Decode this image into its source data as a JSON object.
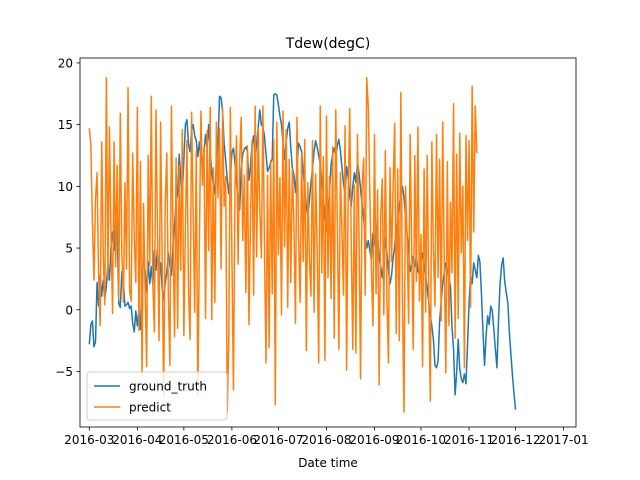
{
  "chart_data": {
    "type": "line",
    "title": "Tdew(degC)",
    "xlabel": "Date time",
    "ylabel": "",
    "xlim": [
      "2016-02-24",
      "2017-01-09"
    ],
    "ylim": [
      -9.5,
      20.4
    ],
    "x_tick_labels": [
      "2016-03",
      "2016-04",
      "2016-05",
      "2016-06",
      "2016-07",
      "2016-08",
      "2016-09",
      "2016-10",
      "2016-11",
      "2016-12",
      "2017-01"
    ],
    "y_tick_labels": [
      "−5",
      "0",
      "5",
      "10",
      "15",
      "20"
    ],
    "legend_position": "lower left",
    "colors": {
      "ground_truth": "#1f77b4",
      "predict": "#ff7f0e"
    },
    "x_start": "2016-03-01",
    "x_step_days": 1,
    "series": [
      {
        "name": "ground_truth",
        "values": [
          -2.8,
          -1.2,
          -0.9,
          -3.0,
          -2.6,
          2.2,
          0.3,
          2.8,
          1.1,
          2.4,
          0.9,
          1.9,
          3.7,
          2.4,
          5.1,
          6.3,
          4.8,
          8.4,
          6.2,
          0.5,
          0.2,
          3.1,
          2.2,
          0.3,
          0.4,
          0.6,
          0.1,
          0.3,
          -1.1,
          -1.8,
          -0.1,
          -1.3,
          0.0,
          -1.6,
          2.4,
          4.0,
          3.2,
          1.4,
          3.9,
          2.1,
          3.5,
          2.0,
          4.8,
          3.2,
          5.0,
          2.6,
          3.8,
          1.7,
          0.8,
          2.2,
          3.0,
          4.6,
          3.6,
          2.8,
          5.2,
          6.9,
          8.8,
          9.4,
          12.6,
          10.6,
          9.3,
          12.1,
          15.0,
          15.4,
          13.4,
          12.8,
          14.5,
          15.0,
          14.1,
          13.7,
          12.4,
          13.6,
          12.2,
          11.6,
          12.8,
          14.2,
          13.1,
          15.0,
          12.8,
          11.2,
          10.1,
          9.4,
          11.9,
          13.2,
          17.3,
          17.2,
          16.1,
          13.4,
          12.1,
          10.6,
          9.4,
          10.8,
          12.7,
          13.1,
          11.9,
          10.3,
          8.9,
          8.1,
          11.3,
          12.6,
          13.0,
          13.2,
          12.8,
          10.5,
          11.6,
          13.4,
          14.1,
          12.2,
          13.4,
          14.8,
          16.2,
          15.0,
          14.8,
          14.1,
          12.6,
          11.2,
          11.5,
          11.9,
          12.2,
          17.4,
          17.5,
          17.4,
          16.6,
          15.7,
          15.0,
          13.5,
          12.2,
          13.6,
          14.7,
          15.2,
          13.1,
          11.5,
          10.9,
          9.5,
          11.6,
          13.5,
          13.2,
          12.8,
          11.2,
          9.8,
          8.3,
          7.6,
          8.9,
          10.3,
          11.4,
          12.8,
          13.7,
          13.2,
          12.5,
          11.8,
          10.6,
          9.1,
          7.7,
          6.4,
          7.9,
          9.6,
          11.8,
          12.6,
          13.1,
          12.5,
          13.3,
          13.8,
          12.9,
          11.5,
          10.2,
          9.4,
          11.6,
          10.7,
          9.2,
          8.4,
          10.0,
          11.1,
          10.3,
          12.0,
          11.1,
          9.8,
          8.5,
          7.4,
          6.1,
          5.0,
          5.6,
          4.8,
          4.1,
          6.2,
          5.3,
          6.8,
          5.8,
          4.2,
          3.5,
          2.6,
          4.1,
          5.8,
          4.6,
          3.2,
          2.1,
          2.8,
          4.2,
          5.1,
          6.4,
          7.5,
          8.4,
          9.3,
          10.0,
          9.1,
          7.6,
          6.2,
          4.8,
          3.1,
          3.6,
          4.3,
          3.5,
          4.4,
          3.1,
          2.9,
          3.8,
          4.6,
          3.4,
          2.7,
          1.8,
          0.6,
          -0.5,
          -1.3,
          -2.4,
          -4.5,
          -4.7,
          -4.2,
          -1.0,
          0.6,
          2.1,
          3.0,
          3.8,
          3.1,
          2.6,
          1.9,
          -1.4,
          -3.2,
          -6.9,
          -5.1,
          -2.4,
          -4.8,
          -5.6,
          -5.9,
          -5.2,
          -6.0,
          -2.9,
          0.5,
          2.8,
          2.1,
          3.8,
          3.2,
          2.6,
          4.4,
          3.9,
          1.3,
          -1.8,
          -4.5,
          -2.1,
          -0.5,
          -1.2,
          0.3,
          -0.1,
          -1.6,
          -3.2,
          -4.7,
          -0.9,
          2.1,
          3.6,
          4.2,
          2.3,
          1.4,
          0.6,
          -1.8,
          -3.6,
          -5.3,
          -6.8,
          -8.1
        ]
      },
      {
        "name": "predict",
        "values": [
          14.7,
          13.4,
          7.2,
          2.4,
          9.0,
          11.1,
          2.7,
          -1.3,
          13.6,
          4.4,
          0.4,
          18.8,
          2.5,
          14.8,
          6.1,
          -0.3,
          13.6,
          3.5,
          11.7,
          0.8,
          15.9,
          4.6,
          0.6,
          10.3,
          3.3,
          18.0,
          1.6,
          0.7,
          12.7,
          5.7,
          2.2,
          16.4,
          -1.7,
          12.0,
          -5.4,
          8.6,
          1.6,
          -4.6,
          12.5,
          3.6,
          17.3,
          2.1,
          -1.8,
          16.2,
          6.3,
          -2.5,
          15.2,
          4.2,
          -7.0,
          8.7,
          12.7,
          1.1,
          -4.5,
          16.5,
          5.9,
          -2.2,
          12.3,
          -1.5,
          11.7,
          3.2,
          14.6,
          -2.1,
          6.8,
          13.7,
          1.5,
          -2.4,
          16.0,
          8.0,
          -0.2,
          12.9,
          -6.9,
          5.2,
          16.1,
          10.1,
          13.2,
          -0.7,
          14.5,
          4.8,
          16.4,
          -0.8,
          11.5,
          0.6,
          15.2,
          9.1,
          14.7,
          3.3,
          16.3,
          8.4,
          10.8,
          -8.3,
          -2.4,
          16.4,
          4.4,
          -6.5,
          10.2,
          14.1,
          3.7,
          12.2,
          15.6,
          5.6,
          10.9,
          1.4,
          13.3,
          -1.2,
          7.2,
          13.7,
          1.2,
          16.5,
          4.3,
          14.7,
          8.0,
          4.2,
          16.5,
          5.1,
          -4.3,
          10.9,
          -3.1,
          12.1,
          1.3,
          13.8,
          -7.7,
          15.2,
          4.5,
          10.7,
          -0.4,
          16.1,
          5.1,
          14.6,
          0.2,
          12.2,
          2.2,
          11.4,
          7.1,
          -1.1,
          15.6,
          5.9,
          0.6,
          12.6,
          3.9,
          13.8,
          -3.3,
          10.3,
          4.1,
          1.1,
          13.7,
          -0.2,
          11.0,
          4.8,
          -4.3,
          16.5,
          3.0,
          12.4,
          -4.1,
          15.7,
          2.6,
          10.8,
          0.9,
          13.2,
          -2.3,
          16.2,
          7.2,
          -3.2,
          11.1,
          6.4,
          1.2,
          14.9,
          -4.9,
          9.0,
          16.3,
          5.2,
          -3.2,
          10.1,
          -3.5,
          14.2,
          6.1,
          -5.6,
          10.0,
          12.3,
          1.2,
          18.8,
          16.4,
          9.3,
          3.2,
          -1.3,
          14.2,
          1.3,
          9.7,
          -6.1,
          7.5,
          10.6,
          -0.4,
          12.9,
          0.9,
          -4.3,
          11.5,
          3.9,
          10.0,
          15.1,
          -1.9,
          11.4,
          -2.5,
          17.6,
          1.4,
          -8.3,
          10.0,
          5.9,
          -1.1,
          14.2,
          4.8,
          -3.2,
          12.5,
          2.3,
          14.8,
          0.7,
          6.1,
          -4.6,
          11.4,
          -0.2,
          12.5,
          1.5,
          -7.4,
          13.6,
          4.8,
          0.3,
          14.2,
          2.6,
          12.2,
          -0.9,
          15.2,
          4.1,
          -5.1,
          12.0,
          -1.3,
          8.7,
          3.0,
          16.7,
          -2.3,
          12.6,
          -0.7,
          14.3,
          4.6,
          10.0,
          -4.7,
          14.1,
          5.6,
          13.7,
          0.2,
          18.1,
          6.3,
          16.5,
          12.7
        ]
      }
    ]
  }
}
